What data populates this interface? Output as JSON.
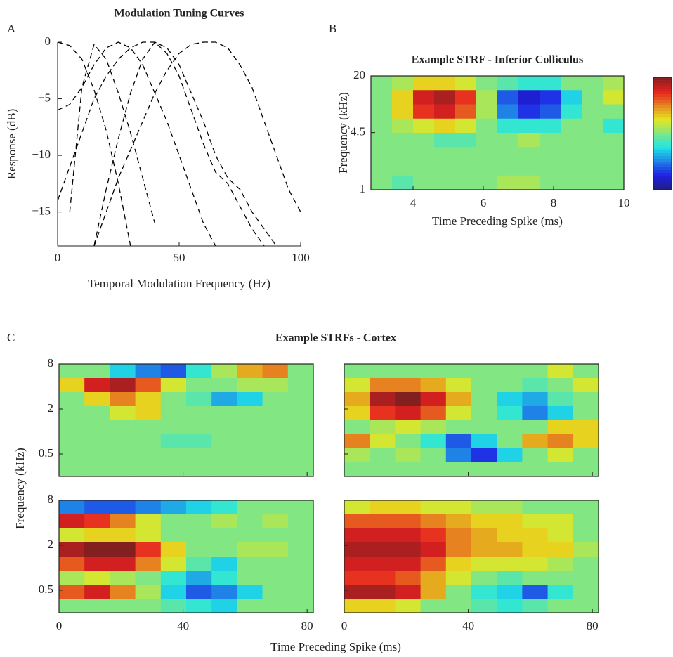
{
  "chart_data": [
    {
      "type": "line",
      "panel_label": "A",
      "title": "Modulation Tuning Curves",
      "x_label": "Temporal Modulation Frequency (Hz)",
      "y_label": "Response (dB)",
      "x": [
        0,
        5,
        10,
        15,
        20,
        25,
        30,
        35,
        40,
        45,
        50,
        55,
        60,
        65,
        70,
        75,
        80,
        85,
        90,
        95,
        100
      ],
      "series": [
        {
          "color": "#000000",
          "values": [
            0,
            -0.3,
            -1.5,
            -4.2,
            -7.8,
            -12.5,
            -18,
            null,
            null,
            null,
            null,
            null,
            null,
            null,
            null,
            null,
            null,
            null,
            null,
            null,
            null
          ]
        },
        {
          "color": "#000000",
          "values": [
            null,
            -15,
            -4,
            -0.2,
            -1.5,
            -4.5,
            -8,
            -12,
            -16,
            null,
            null,
            null,
            null,
            null,
            null,
            null,
            null,
            null,
            null,
            null,
            null
          ]
        },
        {
          "color": "#000000",
          "values": [
            -6,
            -5.5,
            -4,
            -2,
            -0.5,
            0,
            -0.5,
            -2,
            -4.5,
            -7,
            -10,
            -13,
            -16,
            -18,
            null,
            null,
            null,
            null,
            null,
            null,
            null
          ]
        },
        {
          "color": "#000000",
          "values": [
            -14,
            -11,
            -8,
            -5,
            -3,
            -1.5,
            -0.5,
            0,
            0,
            -1,
            -3,
            -6,
            -9,
            -11.5,
            -12.5,
            -14.5,
            -16.5,
            -18,
            null,
            null,
            null
          ]
        },
        {
          "color": "#000000",
          "values": [
            null,
            null,
            null,
            -18,
            -13,
            -8.5,
            -4.5,
            -1.5,
            0,
            -0.5,
            -2,
            -4.5,
            -7,
            -10,
            -12,
            -13,
            -15,
            -16.5,
            -18,
            null,
            null
          ]
        },
        {
          "color": "#000000",
          "values": [
            null,
            null,
            null,
            -18,
            -15,
            -12,
            -9.5,
            -7,
            -4.5,
            -2.5,
            -1,
            -0.2,
            0,
            0,
            -0.5,
            -2,
            -4,
            -7,
            -10,
            -13,
            -15
          ]
        }
      ],
      "dashed": true,
      "xlim": [
        0,
        100
      ],
      "xticks": [
        0,
        50,
        100
      ],
      "ylim": [
        -18,
        0
      ],
      "yticks": [
        0,
        {
          "value": -5,
          "label": "−5"
        },
        {
          "value": -10,
          "label": "−10"
        },
        {
          "value": -15,
          "label": "−15"
        }
      ]
    },
    {
      "type": "heatmap",
      "panel_label": "B",
      "title": "Example STRF - Inferior Colliculus",
      "x_label": "Time Preceding Spike (ms)",
      "y_label": "Frequency (kHz)",
      "xlim": [
        2.8,
        10
      ],
      "xticks": [
        4,
        6,
        8,
        10
      ],
      "ylim": [
        1,
        20
      ],
      "yticks": [
        20,
        4.5,
        1
      ],
      "log_y": true,
      "colormap": "jet",
      "zlim": [
        -1,
        1
      ],
      "colorbar": true,
      "z": [
        [
          0,
          0.1,
          0.3,
          0.3,
          0.2,
          0,
          -0.1,
          -0.2,
          -0.2,
          0,
          0,
          0.1
        ],
        [
          0,
          0.3,
          0.8,
          0.9,
          0.7,
          0.1,
          -0.6,
          -0.8,
          -0.7,
          -0.3,
          0,
          0.2
        ],
        [
          0,
          0.3,
          0.7,
          0.8,
          0.6,
          0.1,
          -0.5,
          -0.7,
          -0.6,
          -0.2,
          0,
          0
        ],
        [
          0,
          0.1,
          0.2,
          0.3,
          0.2,
          0,
          -0.2,
          -0.2,
          -0.2,
          0,
          0,
          -0.2
        ],
        [
          0,
          0,
          0,
          -0.1,
          -0.1,
          0,
          0,
          0.1,
          0,
          0,
          0,
          0
        ],
        [
          0,
          0,
          0,
          0,
          0,
          0,
          0,
          0,
          0,
          0,
          0,
          0
        ],
        [
          0,
          0,
          0,
          0,
          0,
          0,
          0,
          0,
          0,
          0,
          0,
          0
        ],
        [
          0,
          -0.1,
          0,
          0,
          0,
          0,
          0.1,
          0.1,
          0,
          0,
          0,
          0
        ]
      ]
    },
    {
      "type": "heatmap-grid",
      "panel_label": "C",
      "title": "Example STRFs - Cortex",
      "x_label": "Time Preceding Spike (ms)",
      "y_label": "Frequency (kHz)",
      "xlim": [
        0,
        82
      ],
      "xticks": [
        0,
        40,
        80
      ],
      "ylim": [
        0.25,
        8
      ],
      "yticks": [
        8,
        2,
        0.5
      ],
      "log_y": true,
      "colormap": "jet",
      "zlim": [
        -1,
        1
      ],
      "panels": [
        {
          "z": [
            [
              0,
              0,
              -0.3,
              -0.5,
              -0.6,
              -0.2,
              0.1,
              0.4,
              0.5,
              0
            ],
            [
              0.3,
              0.8,
              0.9,
              0.6,
              0.2,
              0,
              0,
              0.1,
              0.1,
              0
            ],
            [
              0,
              0.3,
              0.5,
              0.3,
              0,
              -0.1,
              -0.4,
              -0.3,
              0,
              0
            ],
            [
              0,
              0,
              0.2,
              0.3,
              0,
              0,
              0,
              0,
              0,
              0
            ],
            [
              0,
              0,
              0,
              0,
              0,
              0,
              0,
              0,
              0,
              0
            ],
            [
              0,
              0,
              0,
              0,
              -0.1,
              -0.1,
              0,
              0,
              0,
              0
            ],
            [
              0,
              0,
              0,
              0,
              0,
              0,
              0,
              0,
              0,
              0
            ],
            [
              0,
              0,
              0,
              0,
              0,
              0,
              0,
              0,
              0,
              0
            ]
          ]
        },
        {
          "z": [
            [
              0,
              0,
              0,
              0,
              0,
              0,
              0,
              0,
              0.2,
              0
            ],
            [
              0.2,
              0.5,
              0.5,
              0.4,
              0.2,
              0,
              0,
              -0.1,
              0,
              0.2
            ],
            [
              0.4,
              0.9,
              1,
              0.8,
              0.4,
              0,
              -0.3,
              -0.4,
              -0.1,
              0
            ],
            [
              0.3,
              0.7,
              0.8,
              0.6,
              0.2,
              0,
              -0.2,
              -0.5,
              -0.3,
              0
            ],
            [
              0,
              0.1,
              0.2,
              0.1,
              0,
              0,
              0,
              0,
              0.3,
              0.3
            ],
            [
              0.5,
              0.2,
              0,
              -0.2,
              -0.6,
              -0.3,
              0,
              0.4,
              0.5,
              0.3
            ],
            [
              0.1,
              0,
              0.1,
              0,
              -0.5,
              -0.7,
              -0.3,
              0,
              0.2,
              0
            ],
            [
              0,
              0,
              0,
              0,
              0,
              0,
              0,
              0,
              0,
              0
            ]
          ]
        },
        {
          "z": [
            [
              -0.5,
              -0.6,
              -0.6,
              -0.5,
              -0.4,
              -0.3,
              -0.2,
              0,
              0,
              0
            ],
            [
              0.8,
              0.7,
              0.5,
              0.2,
              0,
              0,
              0.1,
              0,
              0.1,
              0
            ],
            [
              0.2,
              0.3,
              0.3,
              0.2,
              0,
              0,
              0,
              0,
              0,
              0
            ],
            [
              0.9,
              1,
              1,
              0.7,
              0.3,
              0,
              0,
              0.1,
              0.1,
              0
            ],
            [
              0.6,
              0.8,
              0.8,
              0.5,
              0.2,
              -0.1,
              -0.3,
              0,
              0,
              0
            ],
            [
              0.1,
              0.2,
              0.1,
              0,
              -0.2,
              -0.4,
              -0.2,
              0,
              0,
              0
            ],
            [
              0.6,
              0.8,
              0.5,
              0.1,
              -0.3,
              -0.6,
              -0.5,
              -0.3,
              0,
              0
            ],
            [
              0,
              0,
              0,
              0,
              -0.1,
              -0.2,
              -0.3,
              0,
              0,
              0
            ]
          ]
        },
        {
          "z": [
            [
              0.2,
              0.3,
              0.3,
              0.2,
              0.2,
              0.1,
              0.1,
              0,
              0,
              0
            ],
            [
              0.6,
              0.6,
              0.6,
              0.5,
              0.4,
              0.3,
              0.3,
              0.2,
              0.2,
              0
            ],
            [
              0.8,
              0.8,
              0.8,
              0.7,
              0.5,
              0.4,
              0.3,
              0.3,
              0.2,
              0
            ],
            [
              0.9,
              0.9,
              0.9,
              0.8,
              0.5,
              0.4,
              0.4,
              0.3,
              0.3,
              0.1
            ],
            [
              0.8,
              0.8,
              0.8,
              0.6,
              0.3,
              0.2,
              0.2,
              0.2,
              0.1,
              0
            ],
            [
              0.7,
              0.7,
              0.6,
              0.4,
              0.2,
              0,
              -0.1,
              0,
              0,
              0
            ],
            [
              0.9,
              0.9,
              0.8,
              0.4,
              0,
              -0.2,
              -0.3,
              -0.6,
              -0.2,
              0
            ],
            [
              0.3,
              0.3,
              0.2,
              0,
              0,
              -0.1,
              -0.2,
              -0.1,
              0,
              0
            ]
          ]
        }
      ]
    }
  ]
}
